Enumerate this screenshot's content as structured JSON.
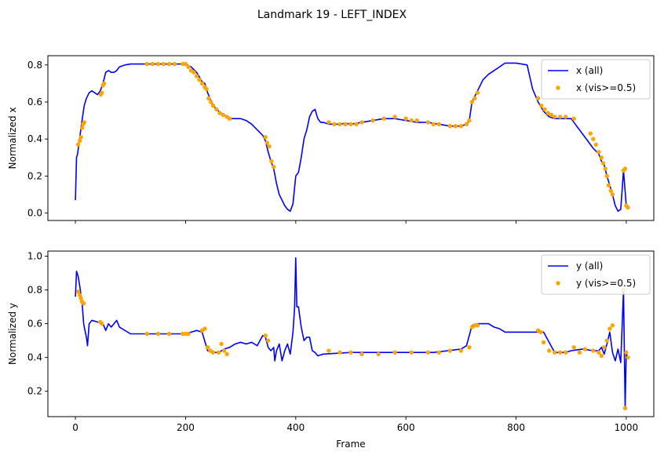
{
  "figure": {
    "title": "Landmark 19 - LEFT_INDEX"
  },
  "colors": {
    "all": "#0000ff",
    "visible": "#ffa500",
    "axes": "#000000",
    "background": "#ffffff"
  },
  "chart_data": [
    {
      "type": "line",
      "ylabel": "Normalized x",
      "xlabel": "",
      "xlim": [
        -50,
        1050
      ],
      "ylim": [
        -0.04,
        0.85
      ],
      "xticks": [
        0,
        200,
        400,
        600,
        800,
        1000
      ],
      "xtick_labels_visible": false,
      "yticks": [
        0.0,
        0.2,
        0.4,
        0.6,
        0.8
      ],
      "ytick_labels": [
        "0.0",
        "0.2",
        "0.4",
        "0.6",
        "0.8"
      ],
      "legend": "upper right",
      "grid": false,
      "series": [
        {
          "name": "x (all)",
          "style": "line",
          "color": "#0000ff",
          "x": [
            0,
            2,
            4,
            8,
            12,
            16,
            20,
            25,
            30,
            35,
            40,
            45,
            50,
            55,
            60,
            65,
            70,
            75,
            80,
            90,
            100,
            120,
            140,
            160,
            180,
            200,
            210,
            220,
            230,
            235,
            240,
            250,
            260,
            270,
            275,
            280,
            290,
            300,
            310,
            320,
            330,
            340,
            345,
            350,
            355,
            360,
            365,
            370,
            375,
            380,
            385,
            390,
            395,
            400,
            405,
            410,
            415,
            420,
            425,
            430,
            435,
            440,
            445,
            450,
            460,
            470,
            480,
            490,
            500,
            520,
            540,
            560,
            580,
            600,
            620,
            640,
            660,
            680,
            690,
            700,
            710,
            715,
            720,
            725,
            730,
            740,
            750,
            760,
            770,
            780,
            790,
            800,
            810,
            820,
            830,
            840,
            850,
            860,
            870,
            880,
            890,
            900,
            910,
            920,
            930,
            940,
            950,
            955,
            960,
            965,
            970,
            975,
            980,
            985,
            990,
            995,
            1000,
            1003
          ],
          "y": [
            0.07,
            0.3,
            0.32,
            0.41,
            0.5,
            0.58,
            0.62,
            0.65,
            0.66,
            0.65,
            0.64,
            0.66,
            0.7,
            0.76,
            0.77,
            0.76,
            0.76,
            0.77,
            0.79,
            0.8,
            0.805,
            0.805,
            0.805,
            0.805,
            0.805,
            0.805,
            0.79,
            0.76,
            0.71,
            0.7,
            0.65,
            0.58,
            0.55,
            0.53,
            0.52,
            0.51,
            0.51,
            0.51,
            0.5,
            0.48,
            0.45,
            0.42,
            0.39,
            0.33,
            0.28,
            0.24,
            0.16,
            0.1,
            0.07,
            0.04,
            0.02,
            0.01,
            0.05,
            0.2,
            0.22,
            0.3,
            0.4,
            0.45,
            0.52,
            0.55,
            0.56,
            0.51,
            0.49,
            0.49,
            0.48,
            0.48,
            0.48,
            0.485,
            0.48,
            0.49,
            0.5,
            0.51,
            0.51,
            0.5,
            0.49,
            0.49,
            0.48,
            0.47,
            0.47,
            0.47,
            0.48,
            0.5,
            0.6,
            0.63,
            0.66,
            0.72,
            0.75,
            0.77,
            0.79,
            0.81,
            0.81,
            0.81,
            0.805,
            0.8,
            0.67,
            0.6,
            0.55,
            0.52,
            0.51,
            0.51,
            0.51,
            0.51,
            0.47,
            0.43,
            0.39,
            0.35,
            0.32,
            0.28,
            0.26,
            0.2,
            0.15,
            0.1,
            0.04,
            0.01,
            0.02,
            0.23,
            0.04,
            0.03
          ]
        },
        {
          "name": "x (vis>=0.5)",
          "style": "markers",
          "color": "#ffa500",
          "x": [
            5,
            8,
            10,
            12,
            14,
            16,
            46,
            48,
            50,
            52,
            130,
            140,
            150,
            160,
            170,
            180,
            195,
            200,
            205,
            210,
            215,
            220,
            225,
            230,
            235,
            238,
            242,
            246,
            250,
            256,
            262,
            268,
            275,
            280,
            345,
            348,
            352,
            356,
            360,
            460,
            470,
            480,
            490,
            500,
            510,
            520,
            540,
            560,
            580,
            600,
            610,
            620,
            640,
            650,
            660,
            680,
            690,
            700,
            710,
            715,
            720,
            725,
            730,
            840,
            846,
            852,
            858,
            864,
            870,
            880,
            890,
            905,
            935,
            940,
            945,
            950,
            955,
            958,
            962,
            965,
            968,
            972,
            975,
            995,
            998,
            1000,
            1003
          ],
          "y": [
            0.37,
            0.39,
            0.41,
            0.46,
            0.48,
            0.49,
            0.64,
            0.65,
            0.69,
            0.7,
            0.805,
            0.805,
            0.805,
            0.805,
            0.805,
            0.805,
            0.805,
            0.805,
            0.79,
            0.77,
            0.76,
            0.74,
            0.72,
            0.7,
            0.68,
            0.67,
            0.62,
            0.6,
            0.58,
            0.56,
            0.54,
            0.53,
            0.52,
            0.51,
            0.41,
            0.38,
            0.36,
            0.28,
            0.25,
            0.49,
            0.48,
            0.48,
            0.48,
            0.48,
            0.48,
            0.49,
            0.5,
            0.51,
            0.52,
            0.51,
            0.5,
            0.5,
            0.49,
            0.48,
            0.48,
            0.47,
            0.47,
            0.47,
            0.48,
            0.5,
            0.6,
            0.62,
            0.65,
            0.62,
            0.58,
            0.56,
            0.54,
            0.53,
            0.52,
            0.52,
            0.52,
            0.51,
            0.43,
            0.4,
            0.37,
            0.33,
            0.3,
            0.27,
            0.24,
            0.2,
            0.15,
            0.12,
            0.1,
            0.23,
            0.24,
            0.04,
            0.03
          ]
        }
      ]
    },
    {
      "type": "line",
      "ylabel": "Normalized y",
      "xlabel": "Frame",
      "xlim": [
        -50,
        1050
      ],
      "ylim": [
        0.05,
        1.03
      ],
      "xticks": [
        0,
        200,
        400,
        600,
        800,
        1000
      ],
      "xtick_labels": [
        "0",
        "200",
        "400",
        "600",
        "800",
        "1000"
      ],
      "yticks": [
        0.2,
        0.4,
        0.6,
        0.8,
        1.0
      ],
      "ytick_labels": [
        "0.2",
        "0.4",
        "0.6",
        "0.8",
        "1.0"
      ],
      "legend": "upper right",
      "grid": false,
      "series": [
        {
          "name": "y (all)",
          "style": "line",
          "color": "#0000ff",
          "x": [
            0,
            2,
            5,
            8,
            12,
            15,
            18,
            20,
            22,
            25,
            30,
            40,
            50,
            55,
            60,
            65,
            70,
            75,
            80,
            100,
            150,
            200,
            220,
            230,
            240,
            250,
            260,
            270,
            280,
            290,
            300,
            310,
            320,
            330,
            340,
            345,
            350,
            355,
            360,
            362,
            365,
            370,
            375,
            380,
            385,
            390,
            395,
            398,
            400,
            402,
            405,
            410,
            415,
            420,
            425,
            430,
            435,
            440,
            450,
            500,
            550,
            600,
            650,
            700,
            710,
            720,
            730,
            740,
            750,
            760,
            770,
            780,
            800,
            850,
            870,
            880,
            890,
            900,
            920,
            940,
            950,
            955,
            960,
            965,
            970,
            975,
            980,
            985,
            990,
            995,
            998,
            1000,
            1003
          ],
          "y": [
            0.76,
            0.91,
            0.88,
            0.82,
            0.73,
            0.6,
            0.55,
            0.52,
            0.47,
            0.6,
            0.62,
            0.61,
            0.6,
            0.56,
            0.6,
            0.58,
            0.6,
            0.62,
            0.58,
            0.54,
            0.54,
            0.54,
            0.56,
            0.55,
            0.44,
            0.43,
            0.43,
            0.45,
            0.46,
            0.48,
            0.49,
            0.48,
            0.49,
            0.47,
            0.53,
            0.52,
            0.46,
            0.44,
            0.46,
            0.38,
            0.44,
            0.48,
            0.38,
            0.44,
            0.48,
            0.42,
            0.55,
            0.7,
            0.99,
            0.7,
            0.7,
            0.58,
            0.5,
            0.52,
            0.52,
            0.44,
            0.43,
            0.41,
            0.42,
            0.43,
            0.43,
            0.43,
            0.43,
            0.45,
            0.47,
            0.59,
            0.6,
            0.6,
            0.6,
            0.58,
            0.57,
            0.55,
            0.55,
            0.55,
            0.43,
            0.43,
            0.43,
            0.44,
            0.45,
            0.44,
            0.44,
            0.46,
            0.42,
            0.48,
            0.55,
            0.43,
            0.38,
            0.45,
            0.37,
            0.8,
            0.1,
            0.43,
            0.39
          ]
        },
        {
          "name": "y (vis>=0.5)",
          "style": "markers",
          "color": "#ffa500",
          "x": [
            5,
            8,
            10,
            12,
            15,
            45,
            48,
            130,
            150,
            170,
            195,
            200,
            205,
            230,
            235,
            240,
            245,
            250,
            260,
            265,
            270,
            275,
            345,
            350,
            460,
            480,
            500,
            520,
            550,
            580,
            610,
            640,
            660,
            680,
            700,
            715,
            720,
            725,
            730,
            840,
            845,
            850,
            860,
            870,
            880,
            890,
            905,
            915,
            925,
            940,
            950,
            955,
            960,
            965,
            970,
            975,
            995,
            998,
            1000,
            1003
          ],
          "y": [
            0.79,
            0.77,
            0.75,
            0.73,
            0.72,
            0.61,
            0.6,
            0.54,
            0.54,
            0.54,
            0.54,
            0.54,
            0.54,
            0.56,
            0.57,
            0.46,
            0.44,
            0.43,
            0.43,
            0.48,
            0.44,
            0.42,
            0.53,
            0.5,
            0.44,
            0.43,
            0.43,
            0.42,
            0.42,
            0.43,
            0.43,
            0.43,
            0.43,
            0.44,
            0.44,
            0.46,
            0.58,
            0.59,
            0.59,
            0.56,
            0.55,
            0.49,
            0.44,
            0.43,
            0.43,
            0.43,
            0.46,
            0.43,
            0.45,
            0.44,
            0.43,
            0.41,
            0.46,
            0.5,
            0.57,
            0.59,
            0.8,
            0.1,
            0.43,
            0.4
          ]
        }
      ]
    }
  ]
}
